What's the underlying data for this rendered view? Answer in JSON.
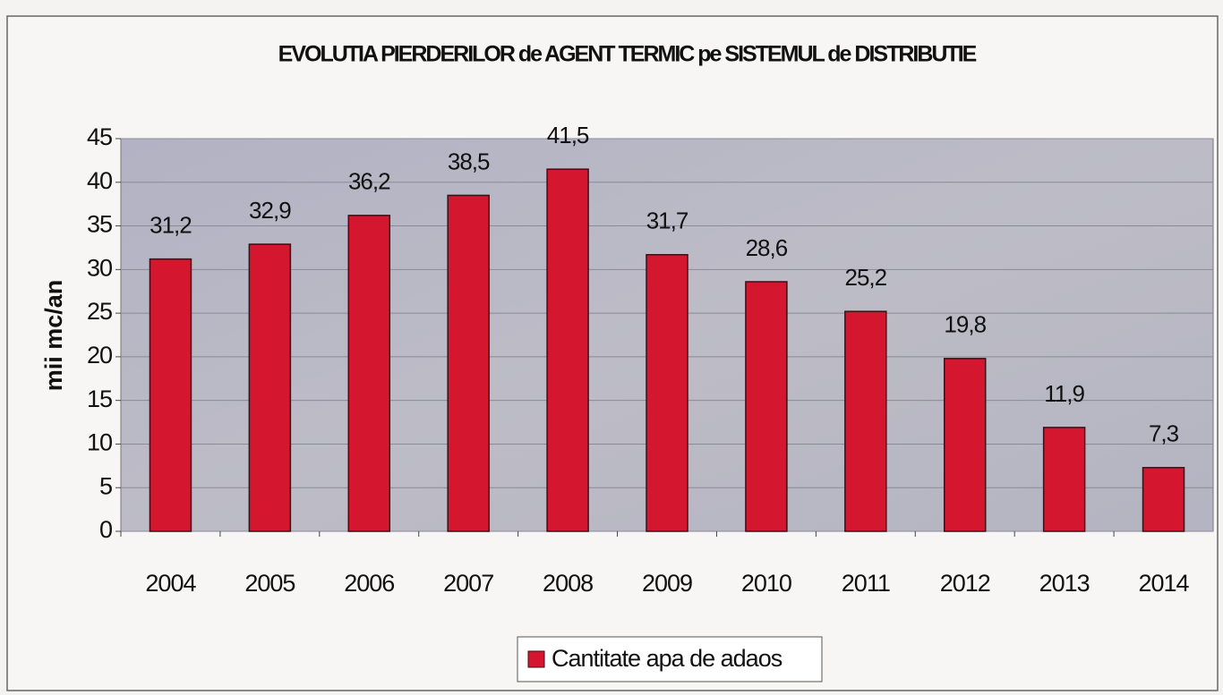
{
  "chart_data": {
    "type": "bar",
    "title": "EVOLUTIA PIERDERILOR de AGENT TERMIC pe SISTEMUL de DISTRIBUTIE",
    "y_label": "mii mc/an",
    "categories": [
      "2004",
      "2005",
      "2006",
      "2007",
      "2008",
      "2009",
      "2010",
      "2011",
      "2012",
      "2013",
      "2014"
    ],
    "series": [
      {
        "name": "Cantitate apa de adaos",
        "color": "#d4162f",
        "values": [
          31.2,
          32.9,
          36.2,
          38.5,
          41.5,
          31.7,
          28.6,
          25.2,
          19.8,
          11.9,
          7.3
        ],
        "value_labels": [
          "31,2",
          "32,9",
          "36,2",
          "38,5",
          "41,5",
          "31,7",
          "28,6",
          "25,2",
          "19,8",
          "11,9",
          "7,3"
        ]
      }
    ],
    "ylim": [
      0,
      45
    ],
    "yticks": [
      0,
      5,
      10,
      15,
      20,
      25,
      30,
      35,
      40,
      45
    ],
    "grid": true,
    "legend": "bottom"
  }
}
